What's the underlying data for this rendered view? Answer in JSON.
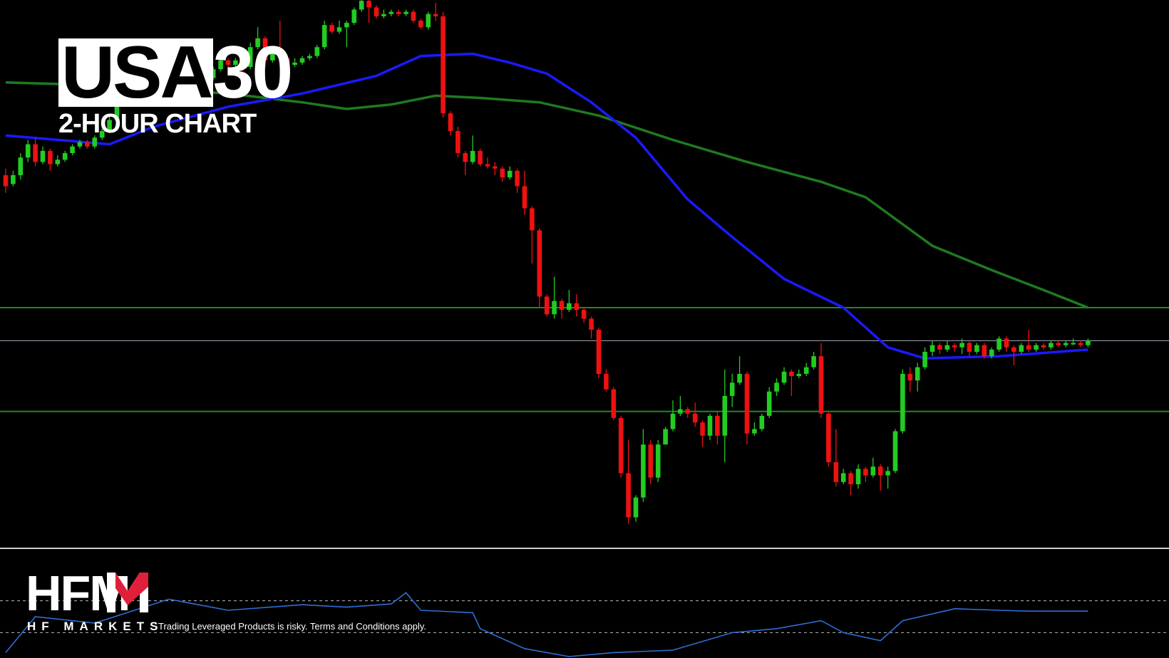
{
  "title": {
    "part_a": "USA",
    "part_b": "30",
    "subtitle": "2-HOUR CHART"
  },
  "brand": {
    "logo_text": "HFM",
    "logo_sub": "HF MARKETS",
    "disclaimer": "Trading Leveraged Products is risky. Terms and Conditions apply."
  },
  "colors": {
    "background": "#000000",
    "bull": "#22cc22",
    "bear": "#ee1111",
    "ma_fast": "#1a1aff",
    "ma_slow": "#1f7a1f",
    "level": "#1f8a1f",
    "current_price": "#9aa3b0",
    "oscillator": "#2e6fd6",
    "logo_accent": "#e0203a"
  },
  "chart_data": {
    "type": "candlestick",
    "title": "USA30",
    "subtitle": "2-HOUR CHART",
    "candles": [
      [
        0,
        0.6,
        0.55,
        0.63,
        0.52
      ],
      [
        1,
        0.56,
        0.6,
        0.62,
        0.55
      ],
      [
        2,
        0.6,
        0.68,
        0.7,
        0.58
      ],
      [
        3,
        0.68,
        0.74,
        0.76,
        0.66
      ],
      [
        4,
        0.74,
        0.66,
        0.77,
        0.64
      ],
      [
        5,
        0.66,
        0.71,
        0.73,
        0.65
      ],
      [
        6,
        0.71,
        0.65,
        0.72,
        0.62
      ],
      [
        7,
        0.65,
        0.67,
        0.69,
        0.64
      ],
      [
        8,
        0.67,
        0.7,
        0.71,
        0.66
      ],
      [
        9,
        0.7,
        0.73,
        0.74,
        0.69
      ],
      [
        10,
        0.73,
        0.75,
        0.76,
        0.72
      ],
      [
        11,
        0.75,
        0.73,
        0.76,
        0.72
      ],
      [
        12,
        0.73,
        0.77,
        0.78,
        0.72
      ],
      [
        13,
        0.77,
        0.8,
        0.81,
        0.76
      ],
      [
        14,
        0.8,
        0.85,
        0.87,
        0.79
      ],
      [
        15,
        0.85,
        1.05,
        1.08,
        0.84
      ],
      [
        16,
        1.05,
        1.1,
        1.12,
        1.03
      ],
      [
        17,
        1.1,
        1.12,
        1.14,
        1.08
      ],
      [
        18,
        1.12,
        1.06,
        1.13,
        1.04
      ],
      [
        19,
        1.06,
        1.08,
        1.1,
        1.05
      ],
      [
        20,
        1.08,
        1.1,
        1.12,
        1.06
      ],
      [
        21,
        1.1,
        1.13,
        1.15,
        1.09
      ],
      [
        22,
        1.13,
        1.11,
        1.14,
        1.09
      ],
      [
        23,
        1.11,
        1.06,
        1.12,
        1.0
      ],
      [
        24,
        1.06,
        1.02,
        1.08,
        1.0
      ],
      [
        25,
        1.02,
        1.05,
        1.07,
        1.0
      ],
      [
        26,
        1.05,
        1.06,
        1.08,
        1.03
      ],
      [
        27,
        1.06,
        1.04,
        1.08,
        1.02
      ],
      [
        28,
        1.04,
        1.08,
        1.09,
        1.03
      ],
      [
        29,
        1.08,
        1.12,
        1.14,
        1.07
      ],
      [
        30,
        1.12,
        1.1,
        1.13,
        1.08
      ],
      [
        31,
        1.1,
        1.12,
        1.13,
        1.09
      ],
      [
        32,
        1.12,
        1.09,
        1.14,
        1.07
      ],
      [
        33,
        1.09,
        1.18,
        1.2,
        1.08
      ],
      [
        34,
        1.18,
        1.22,
        1.27,
        1.17
      ],
      [
        35,
        1.22,
        1.12,
        1.23,
        1.09
      ],
      [
        36,
        1.12,
        1.17,
        1.18,
        1.11
      ],
      [
        37,
        1.17,
        1.13,
        1.3,
        1.11
      ],
      [
        38,
        1.13,
        1.1,
        1.14,
        1.08
      ],
      [
        39,
        1.1,
        1.11,
        1.13,
        1.09
      ],
      [
        40,
        1.11,
        1.13,
        1.14,
        1.1
      ],
      [
        41,
        1.13,
        1.14,
        1.15,
        1.12
      ],
      [
        42,
        1.14,
        1.18,
        1.19,
        1.13
      ],
      [
        43,
        1.18,
        1.28,
        1.3,
        1.17
      ],
      [
        44,
        1.28,
        1.25,
        1.29,
        1.24
      ],
      [
        45,
        1.25,
        1.27,
        1.3,
        1.24
      ],
      [
        46,
        1.27,
        1.29,
        1.3,
        1.18
      ],
      [
        47,
        1.29,
        1.35,
        1.36,
        1.28
      ],
      [
        48,
        1.35,
        1.39,
        1.41,
        1.34
      ],
      [
        49,
        1.39,
        1.36,
        1.4,
        1.29
      ],
      [
        50,
        1.36,
        1.32,
        1.37,
        1.31
      ],
      [
        51,
        1.32,
        1.33,
        1.35,
        1.31
      ],
      [
        52,
        1.33,
        1.34,
        1.35,
        1.32
      ],
      [
        53,
        1.34,
        1.33,
        1.35,
        1.32
      ],
      [
        54,
        1.33,
        1.34,
        1.35,
        1.32
      ],
      [
        55,
        1.34,
        1.3,
        1.35,
        1.29
      ],
      [
        56,
        1.3,
        1.27,
        1.31,
        1.26
      ],
      [
        57,
        1.27,
        1.33,
        1.34,
        1.26
      ],
      [
        58,
        1.33,
        1.32,
        1.38,
        1.3
      ],
      [
        59,
        1.32,
        0.88,
        1.34,
        0.86
      ],
      [
        60,
        0.88,
        0.8,
        0.89,
        0.78
      ],
      [
        61,
        0.8,
        0.7,
        0.82,
        0.68
      ],
      [
        62,
        0.7,
        0.66,
        0.71,
        0.6
      ],
      [
        63,
        0.66,
        0.71,
        0.78,
        0.65
      ],
      [
        64,
        0.71,
        0.65,
        0.72,
        0.64
      ],
      [
        65,
        0.65,
        0.64,
        0.68,
        0.63
      ],
      [
        66,
        0.64,
        0.63,
        0.66,
        0.6
      ],
      [
        67,
        0.63,
        0.59,
        0.64,
        0.57
      ],
      [
        68,
        0.59,
        0.62,
        0.64,
        0.58
      ],
      [
        69,
        0.62,
        0.55,
        0.63,
        0.52
      ],
      [
        70,
        0.55,
        0.45,
        0.62,
        0.42
      ],
      [
        71,
        0.45,
        0.35,
        0.46,
        0.2
      ],
      [
        72,
        0.35,
        0.05,
        0.36,
        0.0
      ],
      [
        73,
        0.05,
        -0.03,
        0.06,
        -0.04
      ],
      [
        74,
        -0.03,
        0.03,
        0.14,
        -0.05
      ],
      [
        75,
        0.03,
        -0.01,
        0.04,
        -0.05
      ],
      [
        76,
        -0.01,
        0.02,
        0.08,
        -0.02
      ],
      [
        77,
        0.02,
        -0.01,
        0.06,
        -0.04
      ],
      [
        78,
        -0.01,
        -0.05,
        0.0,
        -0.07
      ],
      [
        79,
        -0.05,
        -0.1,
        -0.04,
        -0.14
      ],
      [
        80,
        -0.1,
        -0.3,
        -0.09,
        -0.32
      ],
      [
        81,
        -0.3,
        -0.37,
        -0.28,
        -0.38
      ],
      [
        82,
        -0.37,
        -0.5,
        -0.36,
        -0.51
      ],
      [
        83,
        -0.5,
        -0.75,
        -0.49,
        -0.77
      ],
      [
        84,
        -0.75,
        -0.95,
        -0.6,
        -0.98
      ],
      [
        85,
        -0.95,
        -0.86,
        -0.85,
        -0.97
      ],
      [
        86,
        -0.86,
        -0.62,
        -0.55,
        -0.88
      ],
      [
        87,
        -0.62,
        -0.77,
        -0.6,
        -0.8
      ],
      [
        88,
        -0.77,
        -0.62,
        -0.6,
        -0.79
      ],
      [
        89,
        -0.62,
        -0.55,
        -0.54,
        -0.62
      ],
      [
        90,
        -0.55,
        -0.48,
        -0.42,
        -0.56
      ],
      [
        91,
        -0.48,
        -0.46,
        -0.4,
        -0.49
      ],
      [
        92,
        -0.46,
        -0.48,
        -0.45,
        -0.5
      ],
      [
        93,
        -0.48,
        -0.52,
        -0.43,
        -0.54
      ],
      [
        94,
        -0.52,
        -0.58,
        -0.51,
        -0.63
      ],
      [
        95,
        -0.58,
        -0.49,
        -0.48,
        -0.6
      ],
      [
        96,
        -0.49,
        -0.58,
        -0.47,
        -0.62
      ],
      [
        97,
        -0.58,
        -0.4,
        -0.28,
        -0.7
      ],
      [
        98,
        -0.4,
        -0.34,
        -0.3,
        -0.45
      ],
      [
        99,
        -0.34,
        -0.3,
        -0.22,
        -0.35
      ],
      [
        100,
        -0.3,
        -0.57,
        -0.29,
        -0.62
      ],
      [
        101,
        -0.57,
        -0.55,
        -0.52,
        -0.58
      ],
      [
        102,
        -0.55,
        -0.49,
        -0.48,
        -0.56
      ],
      [
        103,
        -0.49,
        -0.38,
        -0.36,
        -0.5
      ],
      [
        104,
        -0.38,
        -0.34,
        -0.32,
        -0.4
      ],
      [
        105,
        -0.34,
        -0.29,
        -0.27,
        -0.35
      ],
      [
        106,
        -0.29,
        -0.31,
        -0.28,
        -0.4
      ],
      [
        107,
        -0.31,
        -0.3,
        -0.28,
        -0.32
      ],
      [
        108,
        -0.3,
        -0.27,
        -0.25,
        -0.31
      ],
      [
        109,
        -0.27,
        -0.22,
        -0.2,
        -0.28
      ],
      [
        110,
        -0.22,
        -0.48,
        -0.16,
        -0.5
      ],
      [
        111,
        -0.48,
        -0.7,
        -0.47,
        -0.72
      ],
      [
        112,
        -0.7,
        -0.79,
        -0.55,
        -0.81
      ],
      [
        113,
        -0.79,
        -0.75,
        -0.73,
        -0.8
      ],
      [
        114,
        -0.75,
        -0.8,
        -0.74,
        -0.85
      ],
      [
        115,
        -0.8,
        -0.73,
        -0.71,
        -0.82
      ],
      [
        116,
        -0.73,
        -0.76,
        -0.72,
        -0.79
      ],
      [
        117,
        -0.76,
        -0.72,
        -0.68,
        -0.77
      ],
      [
        118,
        -0.72,
        -0.76,
        -0.71,
        -0.83
      ],
      [
        119,
        -0.76,
        -0.74,
        -0.72,
        -0.82
      ],
      [
        120,
        -0.74,
        -0.56,
        -0.55,
        -0.75
      ],
      [
        121,
        -0.56,
        -0.3,
        -0.28,
        -0.57
      ],
      [
        122,
        -0.3,
        -0.33,
        -0.27,
        -0.38
      ],
      [
        123,
        -0.33,
        -0.27,
        -0.25,
        -0.38
      ],
      [
        124,
        -0.27,
        -0.2,
        -0.18,
        -0.28
      ],
      [
        125,
        -0.2,
        -0.17,
        -0.15,
        -0.22
      ],
      [
        126,
        -0.17,
        -0.19,
        -0.16,
        -0.21
      ],
      [
        127,
        -0.19,
        -0.17,
        -0.15,
        -0.2
      ],
      [
        128,
        -0.17,
        -0.18,
        -0.16,
        -0.2
      ],
      [
        129,
        -0.18,
        -0.16,
        -0.14,
        -0.21
      ],
      [
        130,
        -0.16,
        -0.2,
        -0.15,
        -0.22
      ],
      [
        131,
        -0.2,
        -0.17,
        -0.16,
        -0.21
      ],
      [
        132,
        -0.17,
        -0.22,
        -0.16,
        -0.23
      ],
      [
        133,
        -0.22,
        -0.19,
        -0.18,
        -0.23
      ],
      [
        134,
        -0.19,
        -0.14,
        -0.13,
        -0.2
      ],
      [
        135,
        -0.14,
        -0.18,
        -0.13,
        -0.2
      ],
      [
        136,
        -0.18,
        -0.2,
        -0.17,
        -0.26
      ],
      [
        137,
        -0.2,
        -0.17,
        -0.16,
        -0.21
      ],
      [
        138,
        -0.17,
        -0.19,
        -0.1,
        -0.2
      ],
      [
        139,
        -0.19,
        -0.17,
        -0.16,
        -0.2
      ],
      [
        140,
        -0.17,
        -0.18,
        -0.16,
        -0.19
      ],
      [
        141,
        -0.18,
        -0.16,
        -0.15,
        -0.19
      ],
      [
        142,
        -0.16,
        -0.17,
        -0.15,
        -0.18
      ],
      [
        143,
        -0.17,
        -0.16,
        -0.15,
        -0.18
      ],
      [
        144,
        -0.16,
        -0.16,
        -0.14,
        -0.17
      ],
      [
        145,
        -0.16,
        -0.17,
        -0.15,
        -0.18
      ],
      [
        146,
        -0.17,
        -0.15,
        -0.14,
        -0.18
      ]
    ],
    "ma_fast": [
      [
        0,
        0.78
      ],
      [
        14,
        0.74
      ],
      [
        20,
        0.82
      ],
      [
        30,
        0.91
      ],
      [
        40,
        0.97
      ],
      [
        50,
        1.05
      ],
      [
        56,
        1.14
      ],
      [
        63,
        1.15
      ],
      [
        68,
        1.11
      ],
      [
        73,
        1.06
      ],
      [
        79,
        0.93
      ],
      [
        85,
        0.77
      ],
      [
        92,
        0.49
      ],
      [
        98,
        0.32
      ],
      [
        105,
        0.13
      ],
      [
        113,
        0.0
      ],
      [
        119,
        -0.18
      ],
      [
        124,
        -0.23
      ],
      [
        134,
        -0.22
      ],
      [
        146,
        -0.19
      ]
    ],
    "ma_slow": [
      [
        0,
        1.02
      ],
      [
        10,
        1.01
      ],
      [
        20,
        0.99
      ],
      [
        30,
        0.97
      ],
      [
        40,
        0.93
      ],
      [
        46,
        0.9
      ],
      [
        52,
        0.92
      ],
      [
        58,
        0.96
      ],
      [
        64,
        0.95
      ],
      [
        72,
        0.93
      ],
      [
        80,
        0.87
      ],
      [
        90,
        0.76
      ],
      [
        100,
        0.66
      ],
      [
        110,
        0.57
      ],
      [
        116,
        0.5
      ],
      [
        125,
        0.28
      ],
      [
        133,
        0.17
      ],
      [
        140,
        0.08
      ],
      [
        146,
        0.0
      ]
    ],
    "levels": [
      0.0,
      -0.47
    ],
    "current_price": -0.15,
    "oscillator": {
      "upper_level": 70,
      "lower_level": 30,
      "values": [
        [
          0,
          5
        ],
        [
          4,
          50
        ],
        [
          12,
          42
        ],
        [
          22,
          72
        ],
        [
          30,
          58
        ],
        [
          40,
          65
        ],
        [
          46,
          62
        ],
        [
          52,
          66
        ],
        [
          54,
          80
        ],
        [
          56,
          58
        ],
        [
          63,
          55
        ],
        [
          64,
          35
        ],
        [
          70,
          10
        ],
        [
          76,
          0
        ],
        [
          82,
          5
        ],
        [
          90,
          8
        ],
        [
          98,
          30
        ],
        [
          104,
          35
        ],
        [
          110,
          45
        ],
        [
          113,
          30
        ],
        [
          118,
          20
        ],
        [
          121,
          45
        ],
        [
          128,
          60
        ],
        [
          134,
          58
        ],
        [
          138,
          57
        ],
        [
          146,
          57
        ]
      ]
    }
  }
}
